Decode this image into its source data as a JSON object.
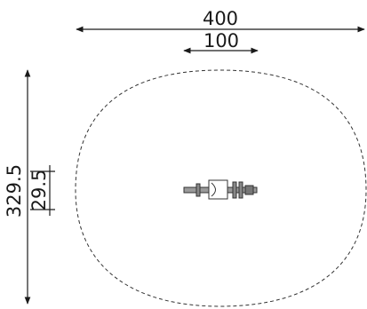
{
  "drawing": {
    "dimensions": {
      "overall_width": "400",
      "equipment_width": "100",
      "overall_depth": "329.5",
      "equipment_depth": "29.5"
    },
    "colors": {
      "ink": "#1a1a1a",
      "equipment_fill": "#9a9a9a",
      "background": "#ffffff"
    }
  }
}
